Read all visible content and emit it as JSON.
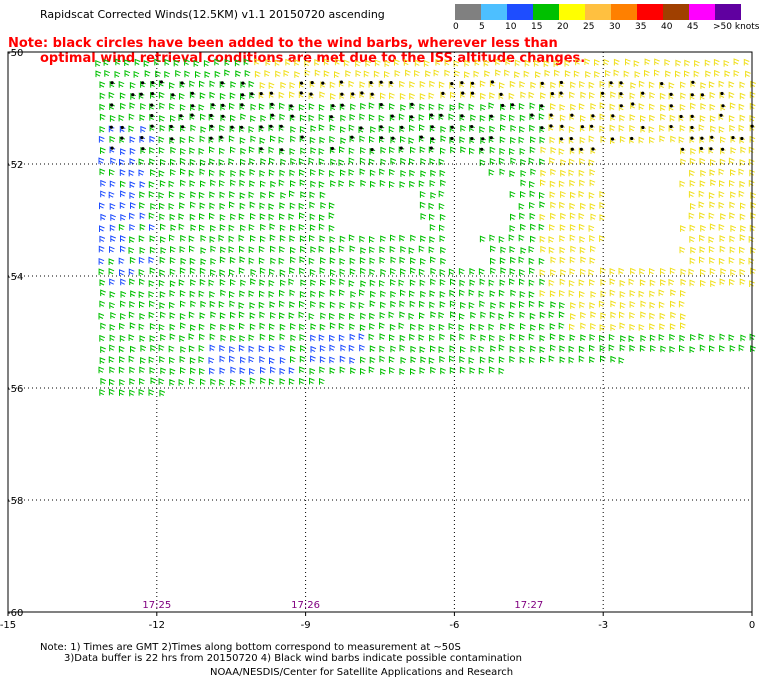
{
  "title": "Rapidscat Corrected Winds(12.5KM) v1.1 20150720 ascending",
  "note_line1": "Note: black circles have been added to the wind barbs, wherever less than",
  "note_line2": "optimal wind retrieval conditions are met due to the ISS altitude changes.",
  "legend": {
    "labels": [
      "0",
      "5",
      "10",
      "15",
      "20",
      "25",
      "30",
      "35",
      "40",
      "45",
      ">50 knots"
    ],
    "colors": [
      "#808080",
      "#4dbfff",
      "#1e4dff",
      "#00c000",
      "#ffff00",
      "#ffc040",
      "#ff8000",
      "#ff0000",
      "#a04000",
      "#ff00ff",
      "#6000a0"
    ]
  },
  "chart_data": {
    "type": "map",
    "x_ticks": [
      "-15",
      "-12",
      "-9",
      "-6",
      "-3",
      "0"
    ],
    "y_ticks": [
      "-50",
      "-52",
      "-54",
      "-56",
      "-58",
      "-60"
    ],
    "xlim": [
      -15,
      0
    ],
    "ylim": [
      -60,
      -50
    ],
    "grid": true,
    "times": [
      {
        "label": "17:25",
        "lon": -12
      },
      {
        "label": "17:26",
        "lon": -9
      },
      {
        "label": "17:27",
        "lon": -4.5
      }
    ]
  },
  "footer": {
    "line1": "Note: 1) Times are GMT 2)Times along bottom correspond to measurement at ~50S",
    "line2": "3)Data buffer is 22 hrs from 20150720 4) Black wind barbs indicate possible contamination",
    "line3": "NOAA/NESDIS/Center for Satellite Applications and Research"
  }
}
